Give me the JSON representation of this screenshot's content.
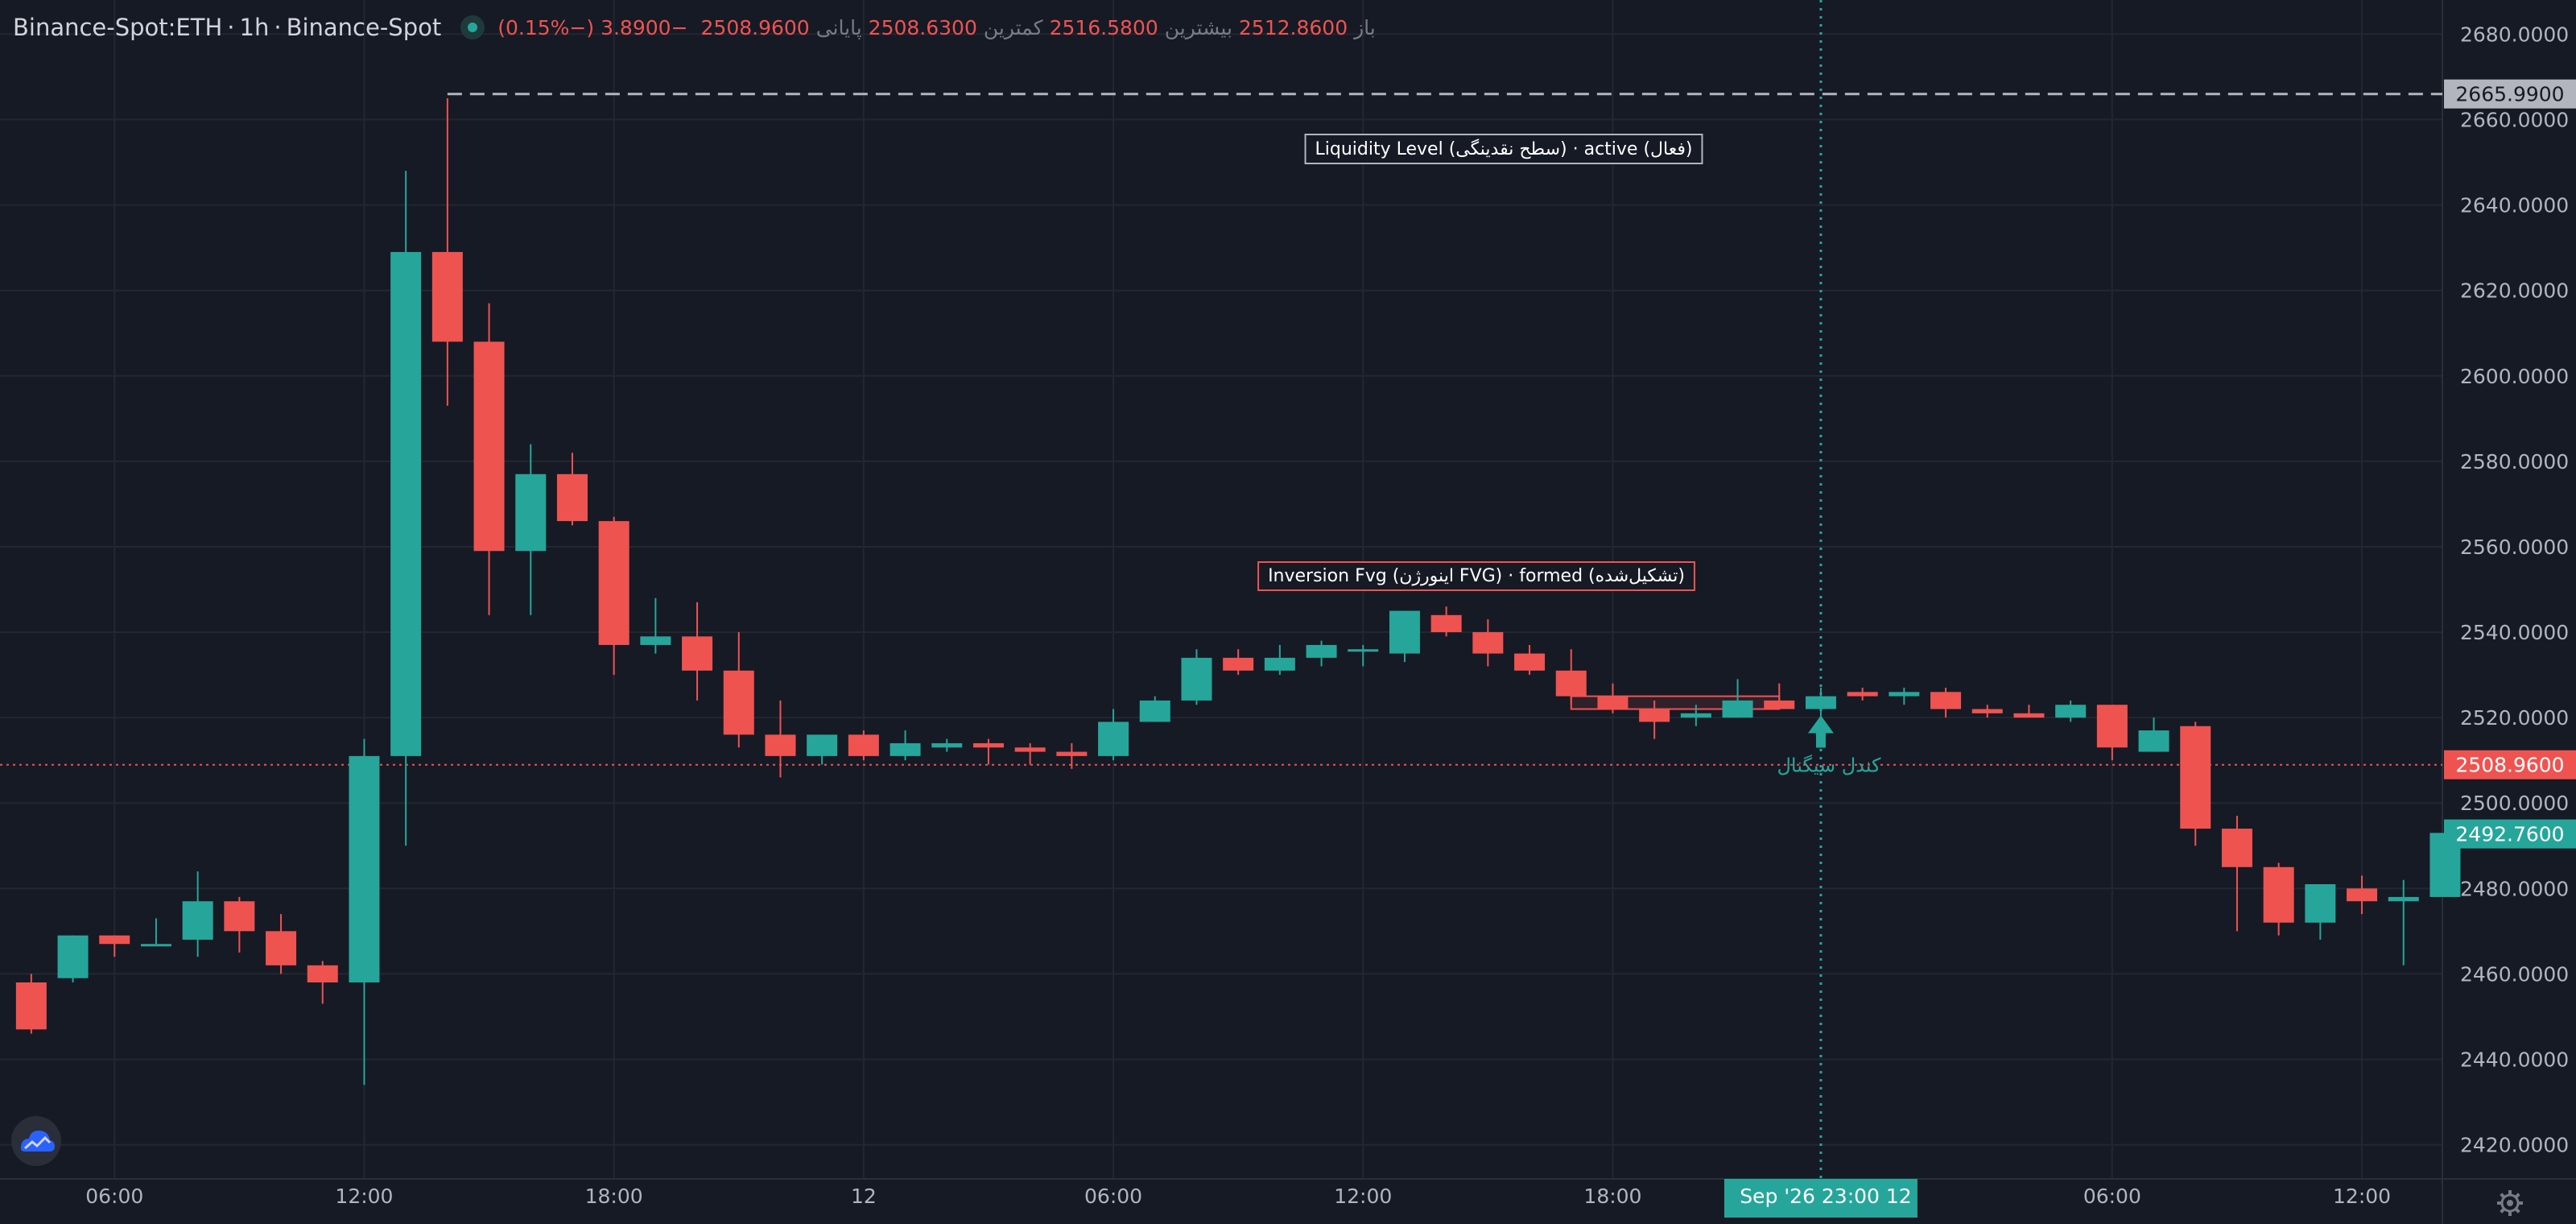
{
  "header": {
    "symbol": "Binance-Spot:ETH",
    "interval": "1h",
    "exchange": "Binance-Spot",
    "separator": "·",
    "status_color": "#26a69a",
    "ohlc": [
      {
        "label": "باز",
        "value": "2512.8600"
      },
      {
        "label": "بیشترین",
        "value": "2516.5800"
      },
      {
        "label": "کمترین",
        "value": "2508.6300"
      },
      {
        "label": "پایانی",
        "value": "2508.9600"
      },
      {
        "label": "",
        "value": "−3.8900 (−0.15%)"
      }
    ]
  },
  "colors": {
    "background": "#161a25",
    "up": "#26a69a",
    "down": "#ef5350",
    "grid": "#232732",
    "axis_text": "#b2b5be"
  },
  "chart_data": {
    "type": "candlestick",
    "ylim": [
      2412,
      2688
    ],
    "y_ticks": [
      "2420.0000",
      "2440.0000",
      "2460.0000",
      "2480.0000",
      "2500.0000",
      "2520.0000",
      "2540.0000",
      "2560.0000",
      "2580.0000",
      "2600.0000",
      "2620.0000",
      "2640.0000",
      "2660.0000",
      "2680.0000"
    ],
    "x_ticks": [
      {
        "label": "06:00",
        "index": 2
      },
      {
        "label": "12:00",
        "index": 8
      },
      {
        "label": "18:00",
        "index": 14
      },
      {
        "label": "12",
        "index": 20
      },
      {
        "label": "06:00",
        "index": 26
      },
      {
        "label": "12:00",
        "index": 32
      },
      {
        "label": "18:00",
        "index": 38
      },
      {
        "label": "06:00",
        "index": 50
      },
      {
        "label": "12:00",
        "index": 56
      }
    ],
    "candles": [
      [
        2458,
        2460,
        2446,
        2447
      ],
      [
        2459,
        2469,
        2458,
        2469
      ],
      [
        2469,
        2469,
        2464,
        2467
      ],
      [
        2467,
        2473,
        2467,
        2467
      ],
      [
        2468,
        2484,
        2464,
        2477
      ],
      [
        2477,
        2478,
        2465,
        2470
      ],
      [
        2470,
        2474,
        2460,
        2462
      ],
      [
        2462,
        2463,
        2453,
        2458
      ],
      [
        2458,
        2515,
        2434,
        2511
      ],
      [
        2511,
        2648,
        2490,
        2629
      ],
      [
        2629,
        2665,
        2593,
        2608
      ],
      [
        2608,
        2617,
        2544,
        2559
      ],
      [
        2559,
        2584,
        2544,
        2577
      ],
      [
        2577,
        2582,
        2565,
        2566
      ],
      [
        2566,
        2567,
        2530,
        2537
      ],
      [
        2537,
        2548,
        2535,
        2539
      ],
      [
        2539,
        2547,
        2524,
        2531
      ],
      [
        2531,
        2540,
        2513,
        2516
      ],
      [
        2516,
        2524,
        2506,
        2511
      ],
      [
        2511,
        2516,
        2509,
        2516
      ],
      [
        2516,
        2517,
        2510,
        2511
      ],
      [
        2511,
        2517,
        2510,
        2514
      ],
      [
        2513,
        2515,
        2512,
        2514
      ],
      [
        2514,
        2515,
        2509,
        2513
      ],
      [
        2513,
        2514,
        2509,
        2512
      ],
      [
        2512,
        2514,
        2508,
        2511
      ],
      [
        2511,
        2522,
        2510,
        2519
      ],
      [
        2519,
        2525,
        2519,
        2524
      ],
      [
        2524,
        2536,
        2523,
        2534
      ],
      [
        2534,
        2536,
        2530,
        2531
      ],
      [
        2531,
        2537,
        2530,
        2534
      ],
      [
        2534,
        2538,
        2532,
        2537
      ],
      [
        2536,
        2537,
        2532,
        2536
      ],
      [
        2535,
        2545,
        2533,
        2545
      ],
      [
        2544,
        2546,
        2539,
        2540
      ],
      [
        2540,
        2543,
        2532,
        2535
      ],
      [
        2535,
        2537,
        2530,
        2531
      ],
      [
        2531,
        2536,
        2523,
        2525
      ],
      [
        2525,
        2528,
        2521,
        2522
      ],
      [
        2522,
        2524,
        2515,
        2519
      ],
      [
        2520,
        2523,
        2518,
        2521
      ],
      [
        2520,
        2529,
        2520,
        2524
      ],
      [
        2524,
        2528,
        2522,
        2522
      ],
      [
        2522,
        2527,
        2518,
        2525
      ],
      [
        2526,
        2527,
        2524,
        2525
      ],
      [
        2525,
        2527,
        2523,
        2526
      ],
      [
        2526,
        2527,
        2520,
        2522
      ],
      [
        2522,
        2523,
        2520,
        2521
      ],
      [
        2521,
        2523,
        2520,
        2520
      ],
      [
        2520,
        2524,
        2519,
        2523
      ],
      [
        2523,
        2523,
        2510,
        2513
      ],
      [
        2512,
        2520,
        2512,
        2517
      ],
      [
        2518,
        2519,
        2490,
        2494
      ],
      [
        2494,
        2497,
        2470,
        2485
      ],
      [
        2485,
        2486,
        2469,
        2472
      ],
      [
        2472,
        2481,
        2468,
        2481
      ],
      [
        2480,
        2483,
        2474,
        2477
      ],
      [
        2477,
        2482,
        2462,
        2478
      ],
      [
        2478,
        2495,
        2478,
        2493
      ]
    ],
    "current_price": {
      "label": "2508.9600",
      "value": 2508.96,
      "color": "#ef5350"
    },
    "last_price": {
      "label": "2492.7600",
      "value": 2492.76,
      "color": "#26a69a"
    },
    "crosshair": {
      "index": 43,
      "label": "Sep '26   23:00 12"
    },
    "liquidity_level": {
      "value": 2666,
      "label": "2665.9900",
      "from_index": 10,
      "text": "Liquidity Level (سطح نقدینگی) · active (فعال)"
    },
    "inversion_fvg": {
      "from_index": 37,
      "to_index": 42,
      "top": 2525,
      "bottom": 2522,
      "text": "Inversion Fvg (اینورژن FVG) · formed (تشکیل‌شده)"
    },
    "signal": {
      "index": 43,
      "text": "کندل سیگنال",
      "color": "#26a69a"
    }
  }
}
